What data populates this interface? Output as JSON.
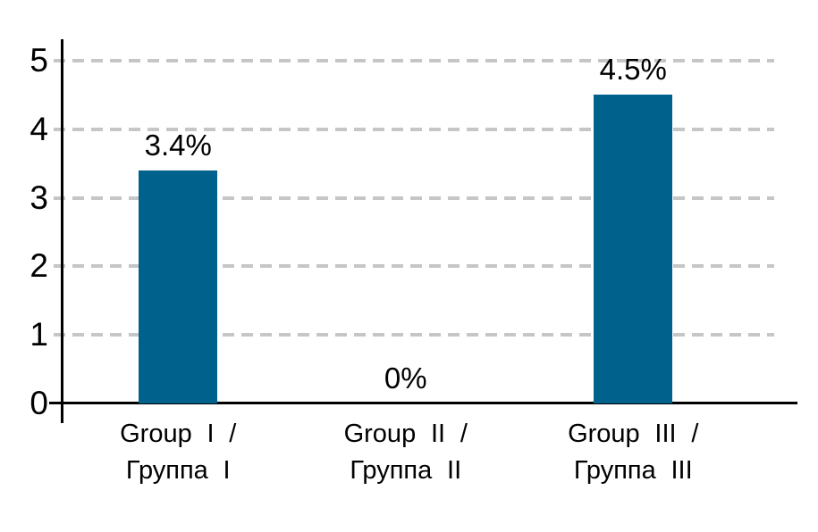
{
  "chart_data": {
    "type": "bar",
    "title": "",
    "categories": [
      "Group I / Группа I",
      "Group II / Группа II",
      "Group III / Группа III"
    ],
    "category_lines": [
      [
        "Group I /",
        "Группа I"
      ],
      [
        "Group II /",
        "Группа II"
      ],
      [
        "Group III /",
        "Группа III"
      ]
    ],
    "values": [
      3.4,
      0,
      4.5
    ],
    "value_labels": [
      "3.4%",
      "0%",
      "4.5%"
    ],
    "yticks": [
      0,
      1,
      2,
      3,
      4,
      5
    ],
    "ylim": [
      0,
      5
    ],
    "grid": "horizontal-dashed",
    "legend": "none",
    "colors": {
      "bar": "#00618c",
      "gridline": "#c6c6c6",
      "axis": "#000000",
      "text": "#000000",
      "background": "#ffffff"
    }
  }
}
